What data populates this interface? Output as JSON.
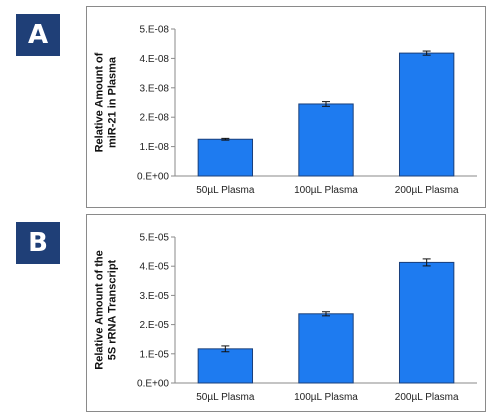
{
  "panels": [
    {
      "label": "A"
    },
    {
      "label": "B"
    }
  ],
  "colors": {
    "bar_fill": "#1e7bf0",
    "bar_stroke": "#1a3f7a",
    "panel_label_bg": "#1f3f77"
  },
  "chart_data": [
    {
      "type": "bar",
      "categories": [
        "50µL Plasma",
        "100µL Plasma",
        "200µL Plasma"
      ],
      "values": [
        1.25e-08,
        2.45e-08,
        4.18e-08
      ],
      "errors": [
        3e-10,
        8e-10,
        7e-10
      ],
      "ylabel_lines": [
        "Relative Amount of",
        "miR-21 in Plasma"
      ],
      "ylim": [
        0,
        5e-08
      ],
      "yticks": [
        0,
        1e-08,
        2e-08,
        3e-08,
        4e-08,
        5e-08
      ],
      "ytick_labels": [
        "0.E+00",
        "1.E-08",
        "2.E-08",
        "3.E-08",
        "4.E-08",
        "5.E-08"
      ],
      "grid": false
    },
    {
      "type": "bar",
      "categories": [
        "50µL Plasma",
        "100µL Plasma",
        "200µL Plasma"
      ],
      "values": [
        1.17e-05,
        2.37e-05,
        4.13e-05
      ],
      "errors": [
        1e-06,
        7e-07,
        1.2e-06
      ],
      "ylabel_lines": [
        "Relative Amount of the",
        "5S rRNA Transcript"
      ],
      "ylim": [
        0,
        5e-05
      ],
      "yticks": [
        0,
        1e-05,
        2e-05,
        3e-05,
        4e-05,
        5e-05
      ],
      "ytick_labels": [
        "0.E+00",
        "1.E-05",
        "2.E-05",
        "3.E-05",
        "4.E-05",
        "5.E-05"
      ],
      "grid": false
    }
  ]
}
